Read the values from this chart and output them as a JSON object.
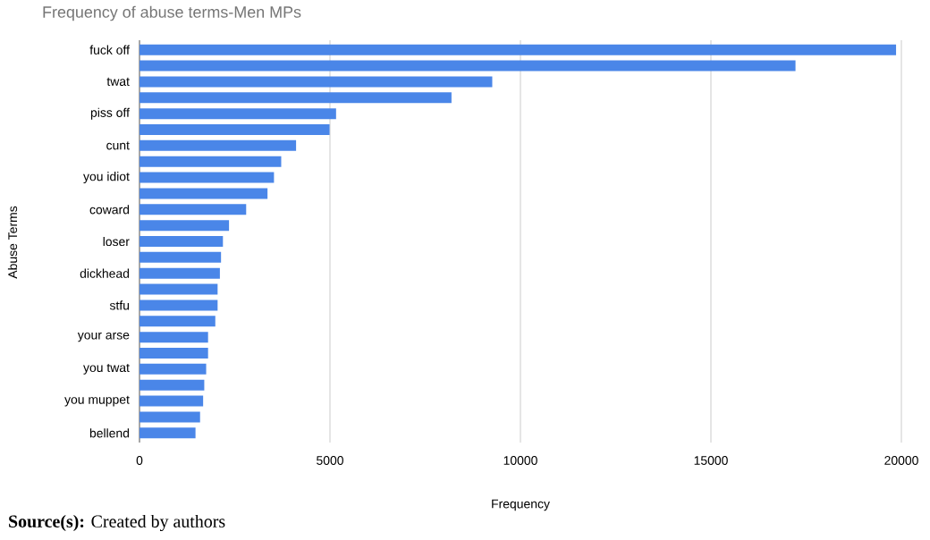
{
  "chart_data": {
    "type": "bar",
    "orientation": "horizontal",
    "title": "Frequency of abuse terms-Men MPs",
    "xlabel": "Frequency",
    "ylabel": "Abuse Terms",
    "categories": [
      "fuck off",
      null,
      "twat",
      null,
      "piss off",
      null,
      "cunt",
      null,
      "you idiot",
      null,
      "coward",
      null,
      "loser",
      null,
      "dickhead",
      null,
      "stfu",
      null,
      "your arse",
      null,
      "you twat",
      null,
      "you muppet",
      null,
      "bellend"
    ],
    "values": [
      19860,
      17220,
      9260,
      8190,
      5160,
      4990,
      4110,
      3720,
      3530,
      3360,
      2800,
      2350,
      2190,
      2140,
      2110,
      2050,
      2050,
      1990,
      1800,
      1800,
      1750,
      1700,
      1670,
      1590,
      1470
    ],
    "color": "#4a86e8",
    "xlim": [
      0,
      20000
    ],
    "xticks": [
      0,
      5000,
      10000,
      15000,
      20000
    ],
    "grid": "x",
    "annotations": [
      "**Source(s):** Created by authors"
    ]
  }
}
